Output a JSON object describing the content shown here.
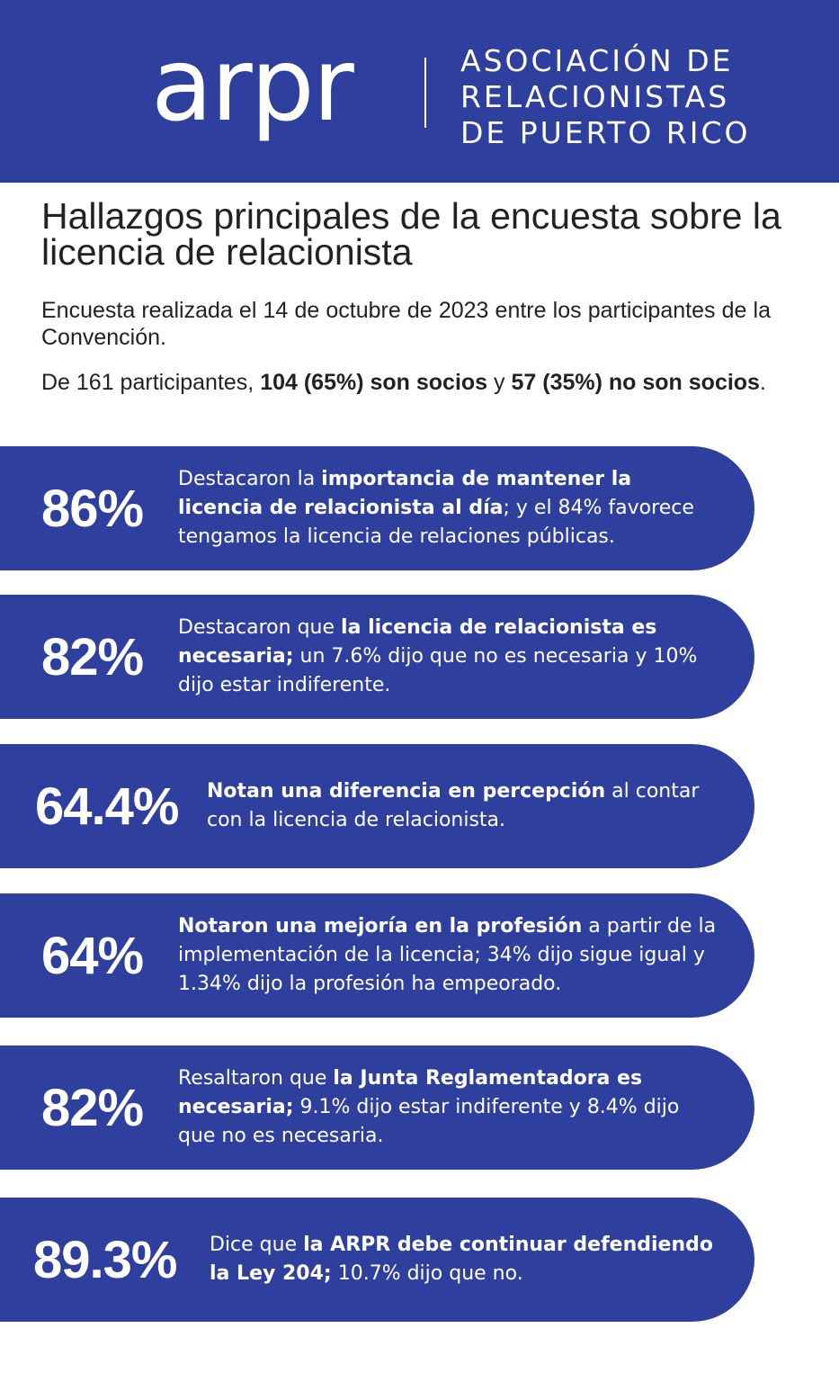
{
  "header": {
    "logo_text": "arpr",
    "org_name_lines": [
      "ASOCIACIÓN DE",
      "RELACIONISTAS",
      "DE PUERTO RICO"
    ],
    "background_color": "#2e3f9e"
  },
  "title": "Hallazgos principales de la encuesta sobre la licencia de relacionista",
  "subtitle": "Encuesta realizada el 14 de octubre de 2023 entre los participantes de la Convención.",
  "stats": {
    "prefix": "De 161 participantes, ",
    "members": "104 (65%) son socios",
    "connector": " y ",
    "non_members": "57 (35%) no son  socios",
    "suffix": "."
  },
  "findings": [
    {
      "percent": "86%",
      "pre": "Destacaron la ",
      "bold": "importancia de mantener la licencia de relacionista al día",
      "post": "; y el 84% favorece tengamos la licencia de relaciones públicas."
    },
    {
      "percent": "82%",
      "pre": "Destacaron que ",
      "bold": "la licencia de relacionista es necesaria;",
      "post": " un 7.6% dijo que no es necesaria y 10% dijo estar indiferente."
    },
    {
      "percent": "64.4%",
      "pre": "",
      "bold": "Notan una diferencia en percepción",
      "post": " al contar con la licencia de relacionista."
    },
    {
      "percent": "64%",
      "pre": "",
      "bold": "Notaron una mejoría en la profesión",
      "post": " a partir de la implementación de la licencia; 34% dijo sigue igual y 1.34% dijo la profesión ha empeorado."
    },
    {
      "percent": "82%",
      "pre": "Resaltaron que ",
      "bold": "la Junta Reglamentadora es necesaria;",
      "post": " 9.1% dijo estar indiferente y 8.4% dijo que no es necesaria."
    },
    {
      "percent": "89.3%",
      "pre": "Dice  que ",
      "bold": "la ARPR debe continuar defendiendo la Ley 204;",
      "post": " 10.7% dijo que no."
    }
  ]
}
